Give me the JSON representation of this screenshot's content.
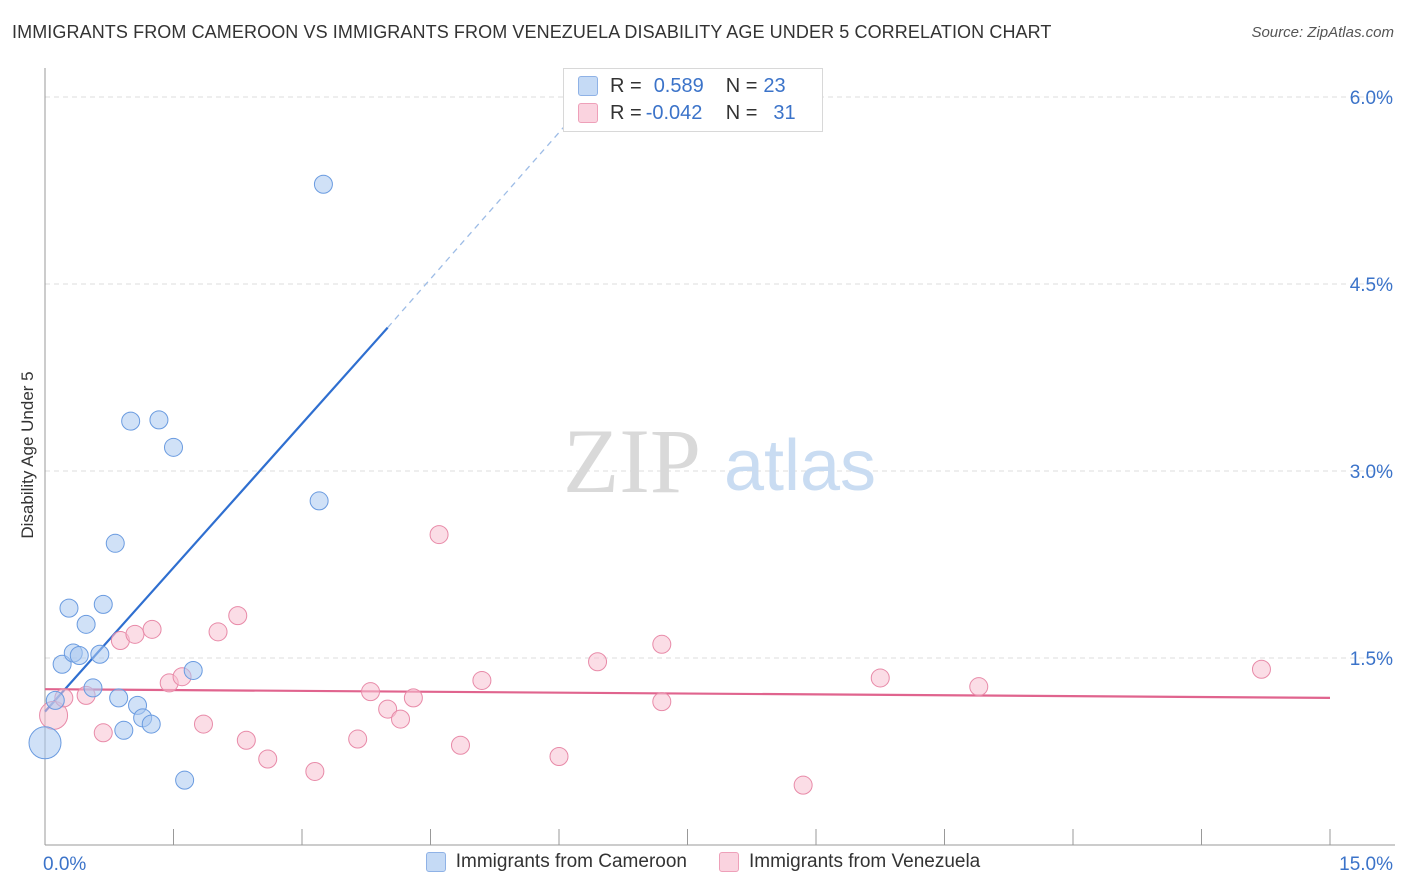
{
  "title": "IMMIGRANTS FROM CAMEROON VS IMMIGRANTS FROM VENEZUELA DISABILITY AGE UNDER 5 CORRELATION CHART",
  "source": "Source: ZipAtlas.com",
  "watermark": {
    "zip": "ZIP",
    "atlas": "atlas"
  },
  "colors": {
    "blue_fill": "#a9c8f0",
    "blue_stroke": "#6a9be0",
    "blue_line": "#2f6fd0",
    "pink_fill": "#f7c1d1",
    "pink_stroke": "#e88aa8",
    "pink_line": "#e0648e",
    "axis_text": "#3b73c9",
    "grid": "#dcdcdc"
  },
  "legend": {
    "rows": [
      {
        "r_label": "R =",
        "r_value": "0.589",
        "n_label": "N =",
        "n_value": "23"
      },
      {
        "r_label": "R =",
        "r_value": "-0.042",
        "n_label": "N =",
        "n_value": "31"
      }
    ]
  },
  "bottom_legend": [
    {
      "label": "Immigrants from Cameroon"
    },
    {
      "label": "Immigrants from Venezuela"
    }
  ],
  "chart_data": {
    "type": "scatter",
    "title": "IMMIGRANTS FROM CAMEROON VS IMMIGRANTS FROM VENEZUELA DISABILITY AGE UNDER 5 CORRELATION CHART",
    "xlabel": "",
    "ylabel": "Disability Age Under 5",
    "xlim": [
      0,
      15
    ],
    "ylim": [
      0,
      6.2
    ],
    "x_tick_labels": [
      {
        "value": 0,
        "label": "0.0%"
      },
      {
        "value": 15,
        "label": "15.0%"
      }
    ],
    "y_tick_labels": [
      {
        "value": 1.5,
        "label": "1.5%"
      },
      {
        "value": 3.0,
        "label": "3.0%"
      },
      {
        "value": 4.5,
        "label": "4.5%"
      },
      {
        "value": 6.0,
        "label": "6.0%"
      }
    ],
    "x_minor_ticks": [
      0,
      1.5,
      3,
      4.5,
      6,
      7.5,
      9,
      10.5,
      12,
      13.5,
      15
    ],
    "grid": true,
    "series": [
      {
        "name": "Immigrants from Cameroon",
        "r": 0.589,
        "n": 23,
        "points": [
          {
            "x": 0.0,
            "y": 0.82,
            "s": 16
          },
          {
            "x": 0.12,
            "y": 1.16,
            "s": 9
          },
          {
            "x": 0.2,
            "y": 1.45,
            "s": 9
          },
          {
            "x": 0.28,
            "y": 1.9,
            "s": 9
          },
          {
            "x": 0.33,
            "y": 1.54,
            "s": 9
          },
          {
            "x": 0.4,
            "y": 1.52,
            "s": 9
          },
          {
            "x": 0.48,
            "y": 1.77,
            "s": 9
          },
          {
            "x": 0.56,
            "y": 1.26,
            "s": 9
          },
          {
            "x": 0.64,
            "y": 1.53,
            "s": 9
          },
          {
            "x": 0.68,
            "y": 1.93,
            "s": 9
          },
          {
            "x": 0.82,
            "y": 2.42,
            "s": 9
          },
          {
            "x": 0.86,
            "y": 1.18,
            "s": 9
          },
          {
            "x": 0.92,
            "y": 0.92,
            "s": 9
          },
          {
            "x": 1.0,
            "y": 3.4,
            "s": 9
          },
          {
            "x": 1.08,
            "y": 1.12,
            "s": 9
          },
          {
            "x": 1.14,
            "y": 1.02,
            "s": 9
          },
          {
            "x": 1.24,
            "y": 0.97,
            "s": 9
          },
          {
            "x": 1.33,
            "y": 3.41,
            "s": 9
          },
          {
            "x": 1.5,
            "y": 3.19,
            "s": 9
          },
          {
            "x": 1.63,
            "y": 0.52,
            "s": 9
          },
          {
            "x": 1.73,
            "y": 1.4,
            "s": 9
          },
          {
            "x": 3.2,
            "y": 2.76,
            "s": 9
          },
          {
            "x": 3.25,
            "y": 5.3,
            "s": 9
          }
        ],
        "trend": {
          "x0": 0.0,
          "y0": 1.07,
          "x1": 4.0,
          "y1": 4.15,
          "dash_x1": 6.3,
          "dash_y1": 5.95
        }
      },
      {
        "name": "Immigrants from Venezuela",
        "r": -0.042,
        "n": 31,
        "points": [
          {
            "x": 0.1,
            "y": 1.04,
            "s": 14
          },
          {
            "x": 0.22,
            "y": 1.18,
            "s": 9
          },
          {
            "x": 0.48,
            "y": 1.2,
            "s": 9
          },
          {
            "x": 0.68,
            "y": 0.9,
            "s": 9
          },
          {
            "x": 0.88,
            "y": 1.64,
            "s": 9
          },
          {
            "x": 1.05,
            "y": 1.69,
            "s": 9
          },
          {
            "x": 1.25,
            "y": 1.73,
            "s": 9
          },
          {
            "x": 1.45,
            "y": 1.3,
            "s": 9
          },
          {
            "x": 1.6,
            "y": 1.35,
            "s": 9
          },
          {
            "x": 1.85,
            "y": 0.97,
            "s": 9
          },
          {
            "x": 2.02,
            "y": 1.71,
            "s": 9
          },
          {
            "x": 2.25,
            "y": 1.84,
            "s": 9
          },
          {
            "x": 2.35,
            "y": 0.84,
            "s": 9
          },
          {
            "x": 2.6,
            "y": 0.69,
            "s": 9
          },
          {
            "x": 3.15,
            "y": 0.59,
            "s": 9
          },
          {
            "x": 3.65,
            "y": 0.85,
            "s": 9
          },
          {
            "x": 3.8,
            "y": 1.23,
            "s": 9
          },
          {
            "x": 4.0,
            "y": 1.09,
            "s": 9
          },
          {
            "x": 4.15,
            "y": 1.01,
            "s": 9
          },
          {
            "x": 4.3,
            "y": 1.18,
            "s": 9
          },
          {
            "x": 4.6,
            "y": 2.49,
            "s": 9
          },
          {
            "x": 4.85,
            "y": 0.8,
            "s": 9
          },
          {
            "x": 5.1,
            "y": 1.32,
            "s": 9
          },
          {
            "x": 6.0,
            "y": 0.71,
            "s": 9
          },
          {
            "x": 6.45,
            "y": 1.47,
            "s": 9
          },
          {
            "x": 7.2,
            "y": 1.61,
            "s": 9
          },
          {
            "x": 7.2,
            "y": 1.15,
            "s": 9
          },
          {
            "x": 8.85,
            "y": 0.48,
            "s": 9
          },
          {
            "x": 9.75,
            "y": 1.34,
            "s": 9
          },
          {
            "x": 10.9,
            "y": 1.27,
            "s": 9
          },
          {
            "x": 14.2,
            "y": 1.41,
            "s": 9
          }
        ],
        "trend": {
          "x0": 0.0,
          "y0": 1.25,
          "x1": 15.0,
          "y1": 1.18
        }
      }
    ]
  }
}
